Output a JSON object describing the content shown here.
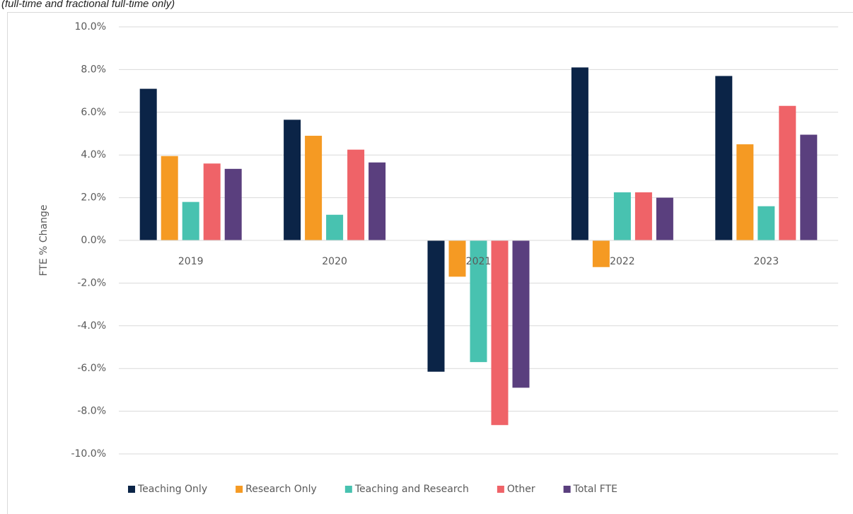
{
  "chart_data": {
    "type": "bar",
    "subtitle": "(full-time and fractional full-time only)",
    "ylabel": "FTE % Change",
    "categories": [
      "2019",
      "2020",
      "2021",
      "2022",
      "2023"
    ],
    "series": [
      {
        "name": "Teaching Only",
        "color": "#0b2447",
        "values": [
          7.1,
          5.65,
          -6.15,
          8.1,
          7.7
        ]
      },
      {
        "name": "Research Only",
        "color": "#f59a23",
        "values": [
          3.95,
          4.9,
          -1.7,
          -1.25,
          4.5
        ]
      },
      {
        "name": "Teaching and Research",
        "color": "#48c2b0",
        "values": [
          1.8,
          1.2,
          -5.7,
          2.25,
          1.6
        ]
      },
      {
        "name": "Other",
        "color": "#ef6368",
        "values": [
          3.6,
          4.25,
          -8.65,
          2.25,
          6.3
        ]
      },
      {
        "name": "Total FTE",
        "color": "#5a3f7e",
        "values": [
          3.35,
          3.65,
          -6.9,
          2.0,
          4.95
        ]
      }
    ],
    "ylim": [
      -10,
      10
    ],
    "yticks": [
      {
        "value": 10,
        "label": "10.0%"
      },
      {
        "value": 8,
        "label": "8.0%"
      },
      {
        "value": 6,
        "label": "6.0%"
      },
      {
        "value": 4,
        "label": "4.0%"
      },
      {
        "value": 2,
        "label": "2.0%"
      },
      {
        "value": 0,
        "label": "0.0%"
      },
      {
        "value": -2,
        "label": "-2.0%"
      },
      {
        "value": -4,
        "label": "-4.0%"
      },
      {
        "value": -6,
        "label": "-6.0%"
      },
      {
        "value": -8,
        "label": "-8.0%"
      },
      {
        "value": -10,
        "label": "-10.0%"
      }
    ],
    "grid": true,
    "legend": "bottom"
  }
}
